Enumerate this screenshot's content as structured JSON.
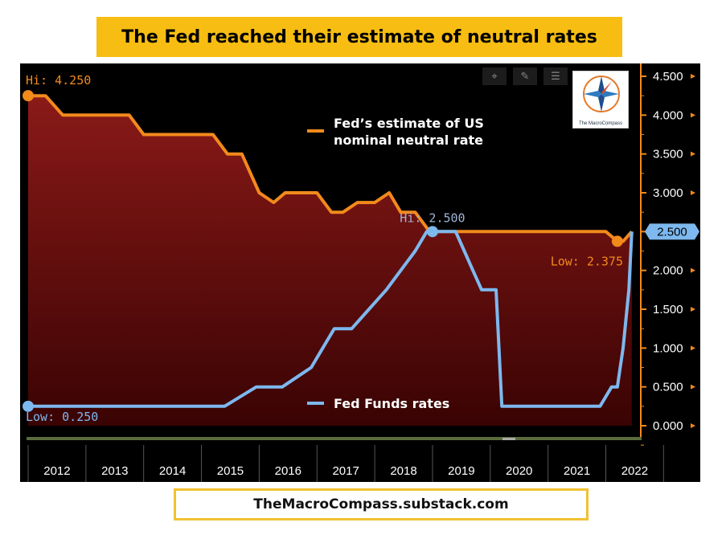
{
  "banner_title": "The Fed reached their estimate of neutral rates",
  "footer": "TheMacroCompass.substack.com",
  "logo": {
    "line1": "The",
    "line2": "MacroCompass"
  },
  "toolbar": {
    "icons": [
      "crosshair-icon",
      "pencil-icon",
      "list-icon",
      "more-icon"
    ]
  },
  "colors": {
    "neutral": "#f28a1c",
    "funds": "#7db8ee",
    "fill": "#7a0e0e",
    "axis": "#f28a1c"
  },
  "chart_data": {
    "type": "line",
    "title": "The Fed reached their estimate of neutral rates",
    "xlabel": "",
    "ylabel": "",
    "xlim": [
      2012.0,
      2022.55
    ],
    "ylim": [
      0.0,
      4.5
    ],
    "y_ticks": [
      0.0,
      0.5,
      1.0,
      1.5,
      2.0,
      2.5,
      3.0,
      3.5,
      4.0,
      4.5
    ],
    "y_tick_labels": [
      "0.000",
      "0.500",
      "1.000",
      "1.500",
      "2.000",
      "2.500",
      "3.000",
      "3.500",
      "4.000",
      "4.500"
    ],
    "x_tick_labels": [
      "2012",
      "2013",
      "2014",
      "2015",
      "2016",
      "2017",
      "2018",
      "2019",
      "2020",
      "2021",
      "2022"
    ],
    "current_value_label": "2.500",
    "series": [
      {
        "name": "Fed’s estimate of US nominal neutral rate",
        "x": [
          2012.0,
          2012.2,
          2012.3,
          2012.6,
          2013.0,
          2013.6,
          2013.75,
          2014.0,
          2014.5,
          2015.0,
          2015.2,
          2015.45,
          2015.7,
          2016.0,
          2016.25,
          2016.45,
          2016.7,
          2017.0,
          2017.25,
          2017.45,
          2017.7,
          2018.0,
          2018.25,
          2018.45,
          2018.7,
          2018.95,
          2019.2,
          2019.45,
          2020.0,
          2020.5,
          2021.0,
          2021.5,
          2021.8,
          2022.0,
          2022.2,
          2022.3,
          2022.45
        ],
        "values": [
          4.25,
          4.25,
          4.25,
          4.0,
          4.0,
          4.0,
          4.0,
          3.75,
          3.75,
          3.75,
          3.75,
          3.5,
          3.5,
          3.0,
          2.875,
          3.0,
          3.0,
          3.0,
          2.75,
          2.75,
          2.875,
          2.875,
          3.0,
          2.75,
          2.75,
          2.5,
          2.5,
          2.5,
          2.5,
          2.5,
          2.5,
          2.5,
          2.5,
          2.5,
          2.375,
          2.375,
          2.5
        ]
      },
      {
        "name": "Fed Funds rates",
        "x": [
          2012.0,
          2012.5,
          2013.0,
          2013.5,
          2014.0,
          2014.5,
          2015.0,
          2015.4,
          2015.95,
          2016.2,
          2016.4,
          2016.9,
          2017.1,
          2017.3,
          2017.6,
          2017.9,
          2018.2,
          2018.45,
          2018.7,
          2018.9,
          2019.1,
          2019.4,
          2019.55,
          2019.7,
          2019.85,
          2020.1,
          2020.15,
          2020.2,
          2020.5,
          2021.0,
          2021.5,
          2021.9,
          2022.1,
          2022.2,
          2022.25,
          2022.3,
          2022.4,
          2022.45
        ],
        "values": [
          0.25,
          0.25,
          0.25,
          0.25,
          0.25,
          0.25,
          0.25,
          0.25,
          0.5,
          0.5,
          0.5,
          0.75,
          1.0,
          1.25,
          1.25,
          1.5,
          1.75,
          2.0,
          2.25,
          2.5,
          2.5,
          2.5,
          2.25,
          2.0,
          1.75,
          1.75,
          1.0,
          0.25,
          0.25,
          0.25,
          0.25,
          0.25,
          0.5,
          0.5,
          0.75,
          1.0,
          1.75,
          2.5
        ]
      }
    ],
    "annotations": [
      {
        "text": "Hi: 4.250",
        "series": 0,
        "x": 2012.0,
        "y": 4.25
      },
      {
        "text": "Low: 0.250",
        "series": 1,
        "x": 2012.0,
        "y": 0.25
      },
      {
        "text": "Hi: 2.500",
        "series": 1,
        "x": 2019.0,
        "y": 2.5
      },
      {
        "text": "Low: 2.375",
        "series": 0,
        "x": 2022.2,
        "y": 2.375
      }
    ],
    "legend": [
      {
        "line1": "Fed’s estimate of US",
        "line2": "nominal neutral rate"
      },
      {
        "line1": "Fed Funds rates"
      }
    ]
  }
}
